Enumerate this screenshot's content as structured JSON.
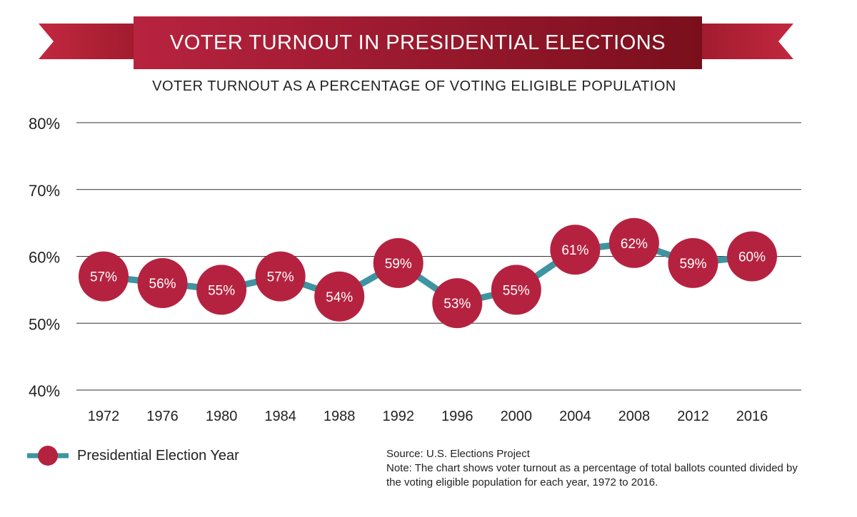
{
  "header": {
    "title": "VOTER TURNOUT IN PRESIDENTIAL ELECTIONS",
    "subtitle": "VOTER TURNOUT AS A PERCENTAGE OF VOTING ELIGIBLE POPULATION"
  },
  "colors": {
    "banner": "#b5223f",
    "marker": "#b5223f",
    "line": "#3e94a0",
    "grid": "#333333"
  },
  "chart_data": {
    "type": "line",
    "title": "VOTER TURNOUT IN PRESIDENTIAL ELECTIONS",
    "subtitle": "VOTER TURNOUT AS A PERCENTAGE OF VOTING ELIGIBLE POPULATION",
    "categories": [
      "1972",
      "1976",
      "1980",
      "1984",
      "1988",
      "1992",
      "1996",
      "2000",
      "2004",
      "2008",
      "2012",
      "2016"
    ],
    "series": [
      {
        "name": "Presidential Election Year",
        "values": [
          57,
          56,
          55,
          57,
          54,
          59,
          53,
          55,
          61,
          62,
          59,
          60
        ],
        "labels": [
          "57%",
          "56%",
          "55%",
          "57%",
          "54%",
          "59%",
          "53%",
          "55%",
          "61%",
          "62%",
          "59%",
          "60%"
        ]
      }
    ],
    "ylim": [
      40,
      80
    ],
    "yticks": [
      "40%",
      "50%",
      "60%",
      "70%",
      "80%"
    ],
    "ytick_values": [
      40,
      50,
      60,
      70,
      80
    ],
    "grid": true,
    "legend": "bottom-left"
  },
  "footer": {
    "source": "Source: U.S. Elections Project",
    "note": "Note: The chart shows voter turnout as a percentage of total ballots counted divided by the voting eligible population for each year, 1972 to 2016."
  }
}
